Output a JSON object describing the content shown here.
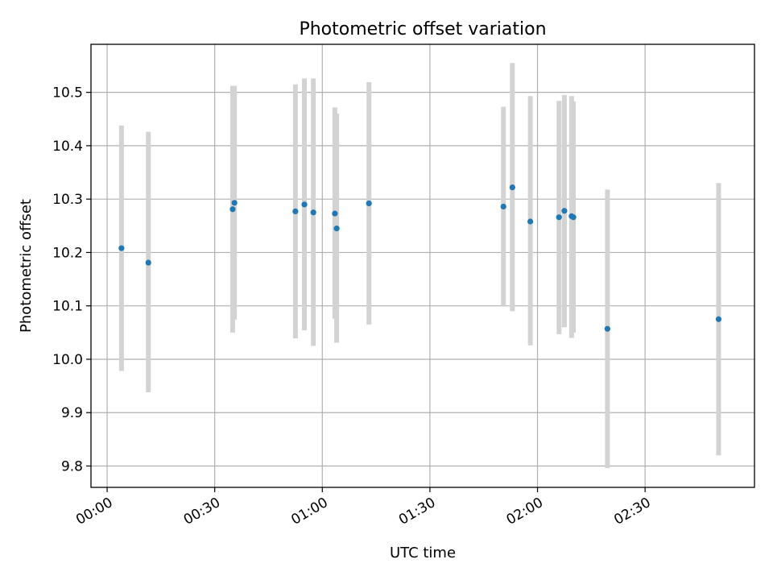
{
  "chart_data": {
    "type": "scatter",
    "title": "Photometric offset variation",
    "xlabel": "UTC time",
    "ylabel": "Photometric offset",
    "grid": true,
    "x_unit": "HH:MM UTC",
    "xlim": [
      "-00:04:30",
      "03:00:30"
    ],
    "ylim": [
      9.76,
      10.59
    ],
    "xticks": [
      "00:00",
      "00:30",
      "01:00",
      "01:30",
      "02:00",
      "02:30"
    ],
    "yticks": [
      "9.8",
      "9.9",
      "10.0",
      "10.1",
      "10.2",
      "10.3",
      "10.4",
      "10.5"
    ],
    "colors": {
      "points": "#1f77b4",
      "errorbars": "#d3d3d3",
      "grid": "#b0b0b0"
    },
    "points": [
      {
        "x": "00:04:00",
        "y": 10.208,
        "ylow": 9.978,
        "yhigh": 10.438
      },
      {
        "x": "00:11:30",
        "y": 10.181,
        "ylow": 9.938,
        "yhigh": 10.426
      },
      {
        "x": "00:35:00",
        "y": 10.281,
        "ylow": 10.05,
        "yhigh": 10.512
      },
      {
        "x": "00:35:30",
        "y": 10.293,
        "ylow": 10.074,
        "yhigh": 10.512
      },
      {
        "x": "00:52:30",
        "y": 10.277,
        "ylow": 10.039,
        "yhigh": 10.515
      },
      {
        "x": "00:55:00",
        "y": 10.29,
        "ylow": 10.054,
        "yhigh": 10.526
      },
      {
        "x": "00:57:30",
        "y": 10.275,
        "ylow": 10.025,
        "yhigh": 10.526
      },
      {
        "x": "01:03:30",
        "y": 10.273,
        "ylow": 10.076,
        "yhigh": 10.472
      },
      {
        "x": "01:04:00",
        "y": 10.245,
        "ylow": 10.031,
        "yhigh": 10.46
      },
      {
        "x": "01:13:00",
        "y": 10.292,
        "ylow": 10.065,
        "yhigh": 10.519
      },
      {
        "x": "01:50:30",
        "y": 10.286,
        "ylow": 10.1,
        "yhigh": 10.473
      },
      {
        "x": "01:53:00",
        "y": 10.322,
        "ylow": 10.09,
        "yhigh": 10.555
      },
      {
        "x": "01:58:00",
        "y": 10.258,
        "ylow": 10.026,
        "yhigh": 10.493
      },
      {
        "x": "02:06:00",
        "y": 10.266,
        "ylow": 10.047,
        "yhigh": 10.484
      },
      {
        "x": "02:07:30",
        "y": 10.278,
        "ylow": 10.06,
        "yhigh": 10.495
      },
      {
        "x": "02:09:30",
        "y": 10.268,
        "ylow": 10.04,
        "yhigh": 10.493
      },
      {
        "x": "02:10:00",
        "y": 10.266,
        "ylow": 10.05,
        "yhigh": 10.483
      },
      {
        "x": "02:19:30",
        "y": 10.057,
        "ylow": 9.796,
        "yhigh": 10.318
      },
      {
        "x": "02:50:30",
        "y": 10.075,
        "ylow": 9.82,
        "yhigh": 10.33
      }
    ]
  }
}
